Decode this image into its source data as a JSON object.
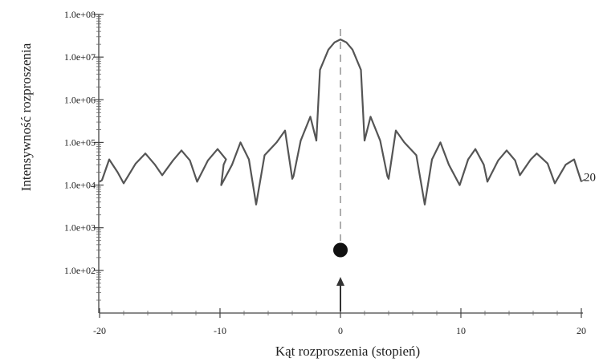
{
  "chart_data": {
    "type": "line",
    "title": "",
    "xlabel": "Kąt rozproszenia (stopień)",
    "ylabel": "Intensywność rozproszenia",
    "xlim": [
      -20,
      20
    ],
    "ylim_log10": [
      1,
      8
    ],
    "y_scale": "log",
    "grid": false,
    "x_ticks": [
      -20,
      -10,
      0,
      10,
      20
    ],
    "x_tick_labels": [
      "-20",
      "-10",
      "0",
      "10",
      "20"
    ],
    "y_ticks": [
      100,
      1000,
      10000,
      100000,
      1000000,
      10000000,
      100000000
    ],
    "y_tick_labels": [
      "1.0e+02",
      "1.0e+03",
      "1.0e+04",
      "1.0e+05",
      "1.0e+06",
      "1.0e+07",
      "1.0e+08"
    ],
    "series": [
      {
        "name": "20",
        "color": "#555555",
        "points": [
          [
            -20.0,
            12000
          ],
          [
            -19.8,
            13000
          ],
          [
            -19.2,
            40000
          ],
          [
            -18.5,
            20000
          ],
          [
            -18.0,
            11000
          ],
          [
            -17.0,
            32000
          ],
          [
            -16.2,
            55000
          ],
          [
            -15.4,
            30000
          ],
          [
            -14.8,
            17000
          ],
          [
            -13.9,
            38000
          ],
          [
            -13.2,
            65000
          ],
          [
            -12.5,
            38000
          ],
          [
            -11.9,
            12000
          ],
          [
            -11.0,
            38000
          ],
          [
            -10.2,
            70000
          ],
          [
            -9.5,
            40000
          ],
          [
            -9.7,
            30000
          ],
          [
            -9.9,
            10000
          ],
          [
            -9.0,
            30000
          ],
          [
            -8.3,
            100000
          ],
          [
            -7.6,
            40000
          ],
          [
            -7.0,
            3500
          ],
          [
            -6.3,
            50000
          ],
          [
            -5.3,
            100000
          ],
          [
            -4.6,
            190000
          ],
          [
            -4.0,
            14000
          ],
          [
            -3.9,
            16000
          ],
          [
            -3.3,
            110000
          ],
          [
            -2.5,
            400000
          ],
          [
            -2.0,
            110000
          ],
          [
            -1.7,
            5000000
          ],
          [
            -1.0,
            15000000
          ],
          [
            -0.5,
            22000000
          ],
          [
            0.0,
            26000000
          ],
          [
            0.5,
            22000000
          ],
          [
            1.0,
            15000000
          ],
          [
            1.7,
            5000000
          ],
          [
            2.0,
            110000
          ],
          [
            2.5,
            400000
          ],
          [
            3.3,
            110000
          ],
          [
            3.9,
            16000
          ],
          [
            4.0,
            14000
          ],
          [
            4.6,
            190000
          ],
          [
            5.3,
            100000
          ],
          [
            6.3,
            50000
          ],
          [
            7.0,
            3500
          ],
          [
            7.6,
            40000
          ],
          [
            8.3,
            100000
          ],
          [
            9.0,
            30000
          ],
          [
            9.9,
            10000
          ],
          [
            10.6,
            40000
          ],
          [
            11.2,
            70000
          ],
          [
            11.9,
            30000
          ],
          [
            12.2,
            12000
          ],
          [
            13.1,
            38000
          ],
          [
            13.8,
            65000
          ],
          [
            14.5,
            38000
          ],
          [
            14.9,
            17000
          ],
          [
            15.8,
            40000
          ],
          [
            16.3,
            55000
          ],
          [
            17.2,
            32000
          ],
          [
            17.8,
            11000
          ],
          [
            18.7,
            30000
          ],
          [
            19.4,
            40000
          ],
          [
            20.0,
            12000
          ]
        ]
      }
    ],
    "annotations": [
      {
        "type": "dashed-vertical-line",
        "x": 0
      },
      {
        "type": "dot",
        "x": 0,
        "y": 300
      },
      {
        "type": "arrow-up",
        "x": 0,
        "y_from": 10,
        "y_to": 40
      }
    ]
  }
}
